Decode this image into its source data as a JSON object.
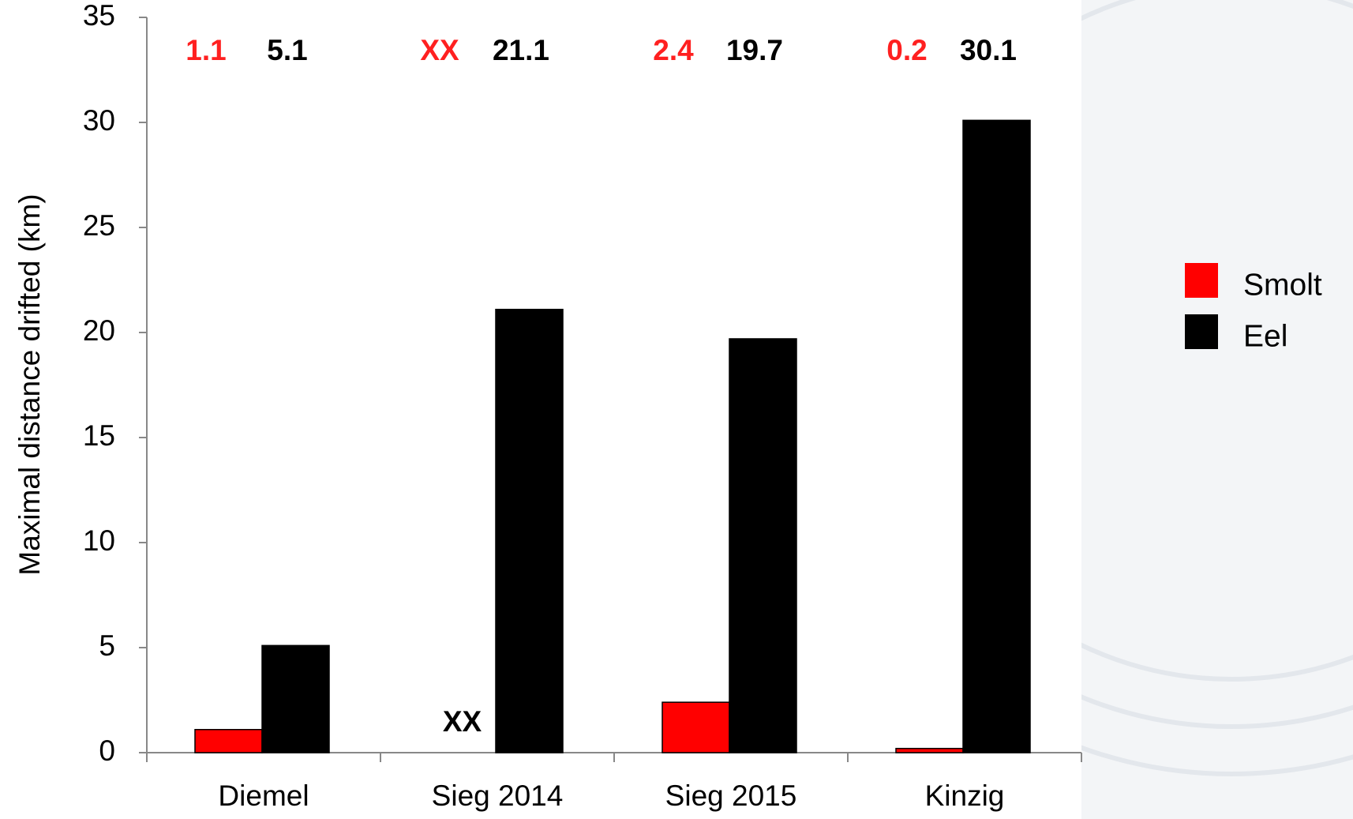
{
  "chart_data": {
    "type": "bar",
    "y_label": "Maximal distance drifted (km)",
    "categories": [
      "Diemel",
      "Sieg 2014",
      "Sieg 2015",
      "Kinzig"
    ],
    "series": [
      {
        "name": "Smolt",
        "color": "#ff0000",
        "label_color": "#ff2020",
        "values": [
          1.1,
          null,
          2.4,
          0.2
        ],
        "value_labels": [
          "1.1",
          "XX",
          "2.4",
          "0.2"
        ]
      },
      {
        "name": "Eel",
        "color": "#000000",
        "label_color": "#000000",
        "values": [
          5.1,
          21.1,
          19.7,
          30.1
        ],
        "value_labels": [
          "5.1",
          "21.1",
          "19.7",
          "30.1"
        ]
      }
    ],
    "annotation": "XX",
    "ylim": [
      0,
      35
    ],
    "yticks": [
      0,
      5,
      10,
      15,
      20,
      25,
      30,
      35
    ],
    "grid": false,
    "legend": "right"
  }
}
